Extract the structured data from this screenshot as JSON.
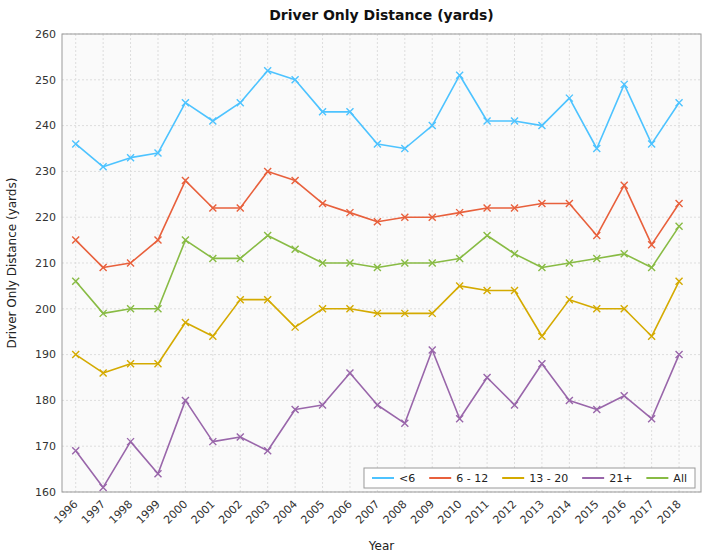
{
  "chart_data": {
    "type": "line",
    "title": "Driver Only Distance (yards)",
    "x_label": "Year",
    "y_label": "Driver Only Distance (yards)",
    "x": [
      1996,
      1997,
      1998,
      1999,
      2000,
      2001,
      2002,
      2003,
      2004,
      2005,
      2006,
      2007,
      2008,
      2009,
      2010,
      2011,
      2012,
      2013,
      2014,
      2015,
      2016,
      2017,
      2018
    ],
    "series": [
      {
        "name": "<6",
        "color": "#4DC3FF",
        "values": [
          236,
          231,
          233,
          234,
          245,
          241,
          245,
          252,
          250,
          243,
          243,
          236,
          235,
          240,
          251,
          241,
          241,
          240,
          246,
          235,
          249,
          236,
          245
        ]
      },
      {
        "name": "6 - 12",
        "color": "#E8603C",
        "values": [
          215,
          209,
          210,
          215,
          228,
          222,
          222,
          230,
          228,
          223,
          221,
          219,
          220,
          220,
          221,
          222,
          222,
          223,
          223,
          216,
          227,
          214,
          223
        ]
      },
      {
        "name": "13 - 20",
        "color": "#D4AA00",
        "values": [
          190,
          186,
          188,
          188,
          197,
          194,
          202,
          202,
          196,
          200,
          200,
          199,
          199,
          199,
          205,
          204,
          204,
          194,
          202,
          200,
          200,
          194,
          206
        ]
      },
      {
        "name": "21+",
        "color": "#9966AA",
        "values": [
          169,
          161,
          171,
          164,
          180,
          171,
          172,
          169,
          178,
          179,
          186,
          179,
          175,
          191,
          176,
          185,
          179,
          188,
          180,
          178,
          181,
          176,
          190
        ]
      },
      {
        "name": "All",
        "color": "#88BB44",
        "values": [
          206,
          199,
          200,
          200,
          215,
          211,
          211,
          216,
          213,
          210,
          210,
          209,
          210,
          210,
          211,
          216,
          212,
          209,
          210,
          211,
          212,
          209,
          218
        ]
      }
    ],
    "xlim": [
      1995.5,
      2018.8
    ],
    "xticks": [
      1996,
      1997,
      1998,
      1999,
      2000,
      2001,
      2002,
      2003,
      2004,
      2005,
      2006,
      2007,
      2008,
      2009,
      2010,
      2011,
      2012,
      2013,
      2014,
      2015,
      2016,
      2017,
      2018
    ],
    "ylim": [
      160,
      260
    ],
    "yticks": [
      160,
      170,
      180,
      190,
      200,
      210,
      220,
      230,
      240,
      250,
      260
    ],
    "grid": true,
    "legend": "lower right",
    "marker": "x"
  }
}
